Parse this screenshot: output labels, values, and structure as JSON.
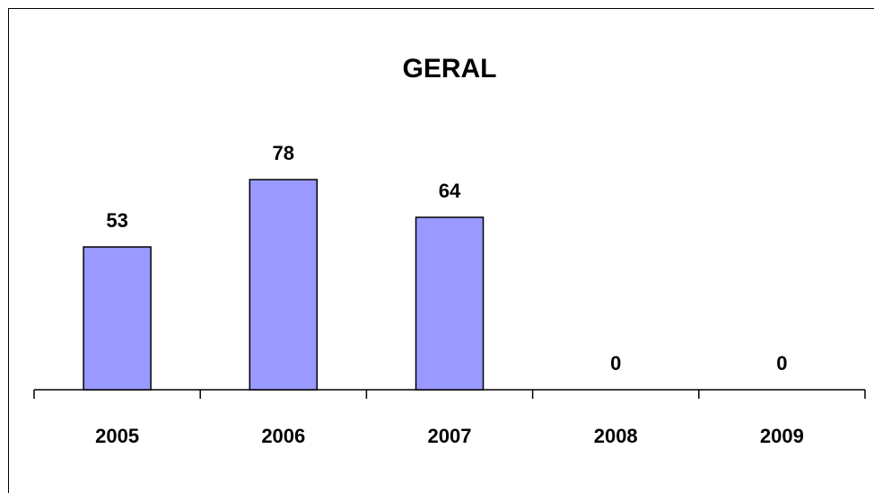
{
  "chart_data": {
    "type": "bar",
    "title": "GERAL",
    "categories": [
      "2005",
      "2006",
      "2007",
      "2008",
      "2009"
    ],
    "values": [
      53,
      78,
      64,
      0,
      0
    ],
    "data_labels": [
      "53",
      "78",
      "64",
      "0",
      "0"
    ],
    "xlabel": "",
    "ylabel": "",
    "ylim": [
      0,
      100
    ],
    "grid": false,
    "legend": "none",
    "bar_color": "#9999ff",
    "bar_border_color": "#000000"
  }
}
